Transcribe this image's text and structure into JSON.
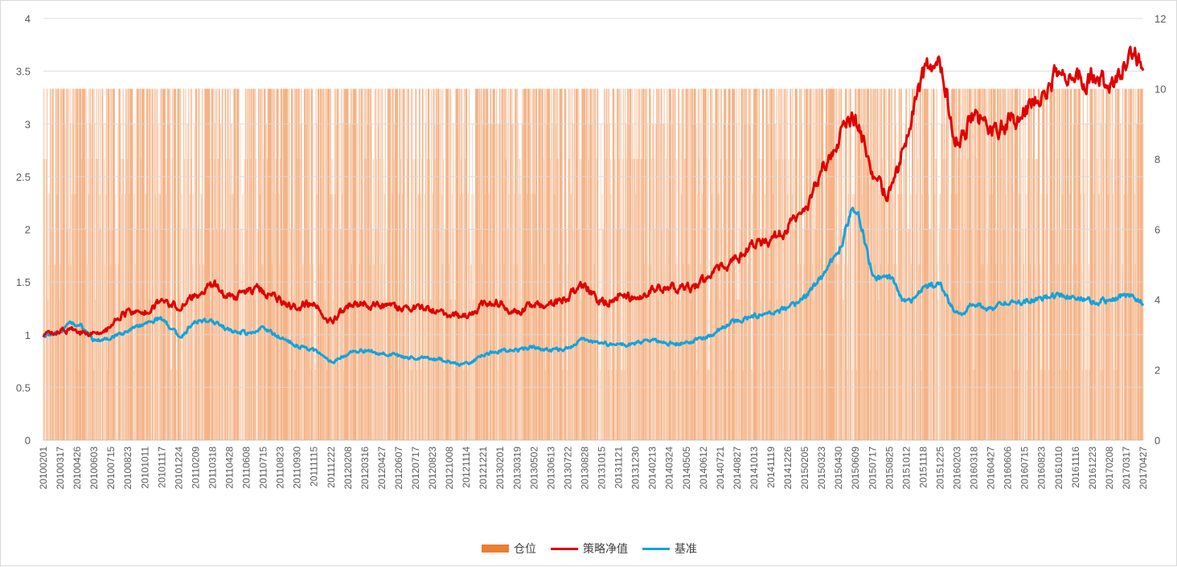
{
  "chart_data": {
    "type": "line",
    "title": "",
    "left_axis": {
      "min": 0,
      "max": 4,
      "ticks": [
        "0",
        "0.5",
        "1",
        "1.5",
        "2",
        "2.5",
        "3",
        "3.5",
        "4"
      ]
    },
    "right_axis": {
      "min": 0,
      "max": 12,
      "ticks": [
        "0",
        "2",
        "4",
        "6",
        "8",
        "10",
        "12"
      ]
    },
    "x_tick_labels": [
      "20100201",
      "20100317",
      "20100426",
      "20100603",
      "20100715",
      "20100823",
      "20101011",
      "20101117",
      "20101224",
      "20110209",
      "20110318",
      "20110428",
      "20110608",
      "20110715",
      "20110823",
      "20110930",
      "20111115",
      "20111222",
      "20120208",
      "20120316",
      "20120427",
      "20120607",
      "20120717",
      "20120823",
      "20121008",
      "20121114",
      "20121221",
      "20130201",
      "20130319",
      "20130502",
      "20130613",
      "20130722",
      "20130828",
      "20131015",
      "20131121",
      "20131230",
      "20140213",
      "20140324",
      "20140505",
      "20140612",
      "20140721",
      "20140827",
      "20141013",
      "20141119",
      "20141226",
      "20150205",
      "20150323",
      "20150430",
      "20150609",
      "20150717",
      "20150825",
      "20151012",
      "20151118",
      "20151225",
      "20160203",
      "20160318",
      "20160427",
      "20160606",
      "20160715",
      "20160823",
      "20161010",
      "20161116",
      "20161223",
      "20170208",
      "20170317",
      "20170427"
    ],
    "series": [
      {
        "name": "仓位",
        "kind": "bar",
        "axis": "right",
        "color": "#ED7D31",
        "levels": [
          0,
          2,
          4,
          5,
          6,
          7,
          8,
          9,
          10
        ]
      },
      {
        "name": "策略净值",
        "kind": "line",
        "axis": "left",
        "color": "#E00000",
        "values": [
          1.0,
          1.05,
          1.03,
          1.01,
          1.08,
          1.22,
          1.2,
          1.3,
          1.27,
          1.38,
          1.48,
          1.36,
          1.4,
          1.42,
          1.32,
          1.28,
          1.3,
          1.14,
          1.27,
          1.29,
          1.28,
          1.25,
          1.27,
          1.22,
          1.2,
          1.17,
          1.29,
          1.3,
          1.22,
          1.28,
          1.29,
          1.37,
          1.45,
          1.31,
          1.38,
          1.34,
          1.43,
          1.45,
          1.43,
          1.5,
          1.62,
          1.72,
          1.84,
          1.88,
          2.02,
          2.15,
          2.55,
          2.85,
          3.02,
          2.55,
          2.35,
          2.9,
          3.45,
          3.55,
          2.85,
          3.1,
          2.95,
          3.0,
          3.15,
          3.3,
          3.45,
          3.4,
          3.45,
          3.4,
          3.55,
          3.65
        ]
      },
      {
        "name": "基准",
        "kind": "line",
        "axis": "left",
        "color": "#12A3DD",
        "values": [
          1.0,
          1.05,
          1.1,
          0.95,
          0.98,
          1.03,
          1.1,
          1.15,
          1.0,
          1.12,
          1.12,
          1.05,
          1.02,
          1.05,
          0.98,
          0.9,
          0.85,
          0.75,
          0.82,
          0.85,
          0.82,
          0.8,
          0.78,
          0.77,
          0.75,
          0.72,
          0.8,
          0.85,
          0.85,
          0.88,
          0.85,
          0.88,
          0.95,
          0.92,
          0.9,
          0.92,
          0.95,
          0.92,
          0.93,
          0.97,
          1.05,
          1.13,
          1.18,
          1.22,
          1.25,
          1.35,
          1.55,
          1.8,
          2.2,
          1.6,
          1.55,
          1.3,
          1.45,
          1.45,
          1.2,
          1.28,
          1.25,
          1.3,
          1.32,
          1.35,
          1.38,
          1.37,
          1.32,
          1.33,
          1.37,
          1.3
        ]
      }
    ],
    "grid": true,
    "legend_position": "bottom"
  },
  "legend": {
    "pos_label": "仓位",
    "strategy_label": "策略净值",
    "bench_label": "基准"
  },
  "colors": {
    "position": "#ED7D31",
    "position_fill": "#F6C8A8",
    "strategy": "#E00000",
    "benchmark": "#12A3DD",
    "grid": "#d9d9d9"
  }
}
